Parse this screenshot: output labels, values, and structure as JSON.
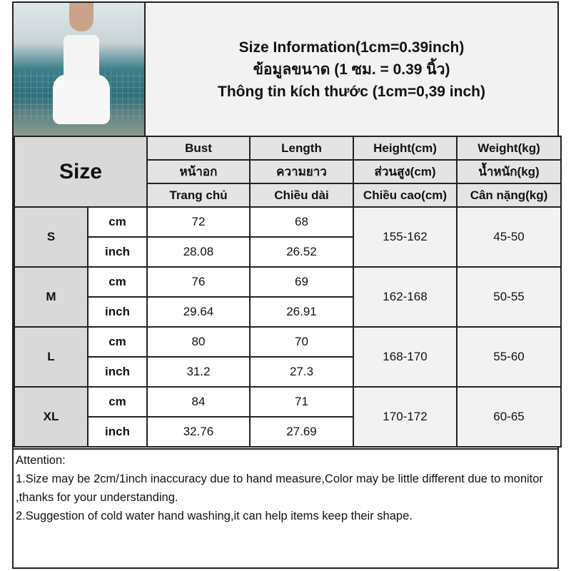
{
  "title": {
    "line_en": "Size Information(1cm=0.39inch)",
    "line_th": "ข้อมูลขนาด (1 ซม. = 0.39 นิ้ว)",
    "line_vi": "Thông tin kích thước (1cm=0,39 inch)"
  },
  "table": {
    "size_header": "Size",
    "columns": [
      {
        "en": "Bust",
        "th": "หน้าอก",
        "vi": "Trang chủ"
      },
      {
        "en": "Length",
        "th": "ความยาว",
        "vi": "Chiều dài"
      },
      {
        "en": "Height(cm)",
        "th": "ส่วนสูง(cm)",
        "vi": "Chiều cao(cm)"
      },
      {
        "en": "Weight(kg)",
        "th": "น้ำหนัก(kg)",
        "vi": "Cân nặng(kg)"
      }
    ],
    "rows": [
      {
        "size": "S",
        "cm_label": "cm",
        "inch_label": "inch",
        "bust_cm": "72",
        "length_cm": "68",
        "bust_inch": "28.08",
        "length_inch": "26.52",
        "height": "155-162",
        "weight": "45-50"
      },
      {
        "size": "M",
        "cm_label": "cm",
        "inch_label": "inch",
        "bust_cm": "76",
        "length_cm": "69",
        "bust_inch": "29.64",
        "length_inch": "26.91",
        "height": "162-168",
        "weight": "50-55"
      },
      {
        "size": "L",
        "cm_label": "cm",
        "inch_label": "inch",
        "bust_cm": "80",
        "length_cm": "70",
        "bust_inch": "31.2",
        "length_inch": "27.3",
        "height": "168-170",
        "weight": "55-60"
      },
      {
        "size": "XL",
        "cm_label": "cm",
        "inch_label": "inch",
        "bust_cm": "84",
        "length_cm": "71",
        "bust_inch": "32.76",
        "length_inch": "27.69",
        "height": "170-172",
        "weight": "60-65"
      }
    ]
  },
  "notes": {
    "heading": "Attention:",
    "items": [
      "1.Size may be 2cm/1inch inaccuracy due to hand measure,Color may be little different due to monitor ,thanks for your understanding.",
      "2.Suggestion of cold water hand washing,it can help items keep their shape."
    ]
  }
}
